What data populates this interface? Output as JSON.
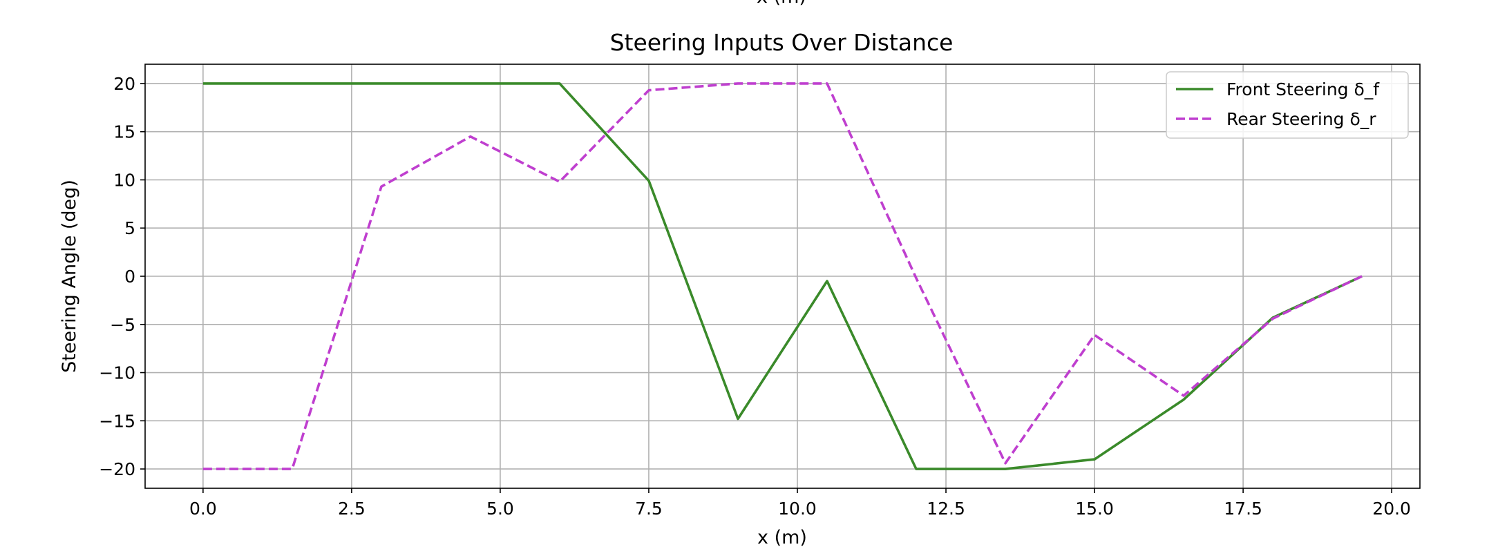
{
  "cut_label": "x (m)",
  "chart_data": {
    "type": "line",
    "title": "Steering Inputs Over Distance",
    "xlabel": "x (m)",
    "ylabel": "Steering Angle (deg)",
    "xlim": [
      -0.975,
      20.475
    ],
    "ylim": [
      -22.0,
      22.0
    ],
    "xticks": [
      0.0,
      2.5,
      5.0,
      7.5,
      10.0,
      12.5,
      15.0,
      17.5,
      20.0
    ],
    "xtick_labels": [
      "0.0",
      "2.5",
      "5.0",
      "7.5",
      "10.0",
      "12.5",
      "15.0",
      "17.5",
      "20.0"
    ],
    "yticks": [
      20,
      15,
      10,
      5,
      0,
      -5,
      -10,
      -15,
      -20
    ],
    "ytick_labels": [
      "20",
      "15",
      "10",
      "5",
      "0",
      "−5",
      "−10",
      "−15",
      "−20"
    ],
    "grid": true,
    "legend_position": "top-right",
    "x": [
      0.0,
      1.5,
      3.0,
      4.5,
      6.0,
      7.5,
      9.0,
      10.5,
      12.0,
      13.5,
      15.0,
      16.5,
      18.0,
      19.5
    ],
    "series": [
      {
        "name": "Front Steering δ_f",
        "style": "solid",
        "color": "#3a8a2a",
        "values": [
          20.0,
          20.0,
          20.0,
          20.0,
          20.0,
          9.9,
          -14.8,
          -0.5,
          -20.0,
          -20.0,
          -19.0,
          -12.8,
          -4.3,
          0.0
        ]
      },
      {
        "name": "Rear Steering δ_r",
        "style": "dashed",
        "color": "#bf3fcf",
        "values": [
          -20.0,
          -20.0,
          9.3,
          14.5,
          9.8,
          19.3,
          20.0,
          20.0,
          -0.2,
          -19.4,
          -6.1,
          -12.4,
          -4.4,
          0.0
        ]
      }
    ]
  }
}
